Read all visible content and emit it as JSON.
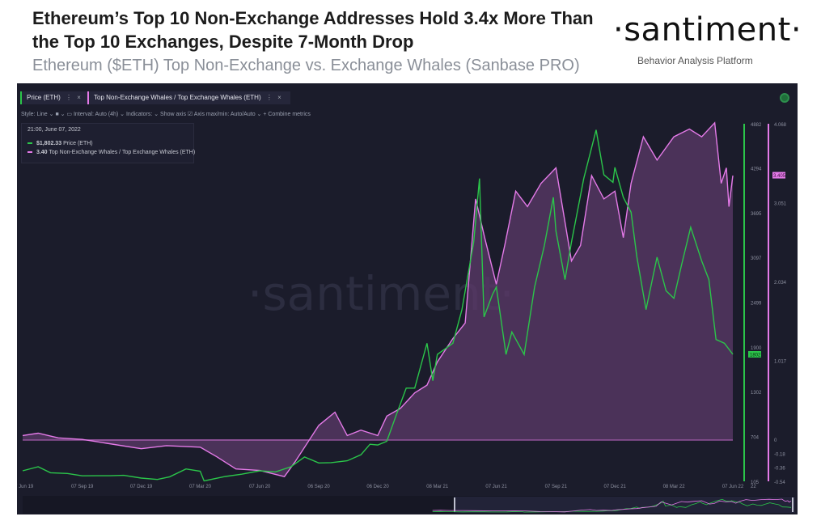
{
  "header": {
    "title": "Ethereum’s Top 10 Non-Exchange Addresses Hold 3.4x More Than the Top 10 Exchanges, Despite 7-Month Drop",
    "subtitle": "Ethereum ($ETH) Top Non-Exchange vs. Exchange Whales (Sanbase PRO)",
    "brand": "·santiment·",
    "brand_tagline": "Behavior Analysis Platform"
  },
  "chart_ui": {
    "chip_price": "Price (ETH)",
    "chip_ratio": "Top Non-Exchange Whales / Top Exchange Whales (ETH)",
    "close_glyph": "×",
    "dots_glyph": "⋮",
    "options_text": "Style: Line ⌄   ■ ⌄   ▭ Interval: Auto (4h) ⌄   Indicators: ⌄   Show axis ☑   Axis max/min: Auto/Auto ⌄   + Combine metrics",
    "watermark": "·santiment·",
    "tooltip": {
      "date": "21:00, June 07, 2022",
      "price_value": "$1,802.33",
      "price_label": "Price (ETH)",
      "ratio_value": "3.40",
      "ratio_label": "Top Non-Exchange Whales / Top Exchange Whales (ETH)"
    }
  },
  "chart_data": {
    "type": "line",
    "x_tick_labels": [
      "07 Jun 19",
      "07 Sep 19",
      "07 Dec 19",
      "07 Mar 20",
      "07 Jun 20",
      "06 Sep 20",
      "06 Dec 20",
      "08 Mar 21",
      "07 Jun 21",
      "07 Sep 21",
      "07 Dec 21",
      "08 Mar 22",
      "07 Jun 22",
      "22"
    ],
    "price_axis_ticks": [
      "4882",
      "4294",
      "3695",
      "3097",
      "2499",
      "1900",
      "1302",
      "704",
      "105"
    ],
    "ratio_axis_ticks": [
      "4.068",
      "3.051",
      "2.034",
      "1.017",
      "0",
      "-0.18",
      "-0.36",
      "-0.54"
    ],
    "price_current_label": "1802",
    "ratio_current_label": "3.405",
    "price_ylim": [
      105,
      4882
    ],
    "ratio_ylim": [
      -0.54,
      4.068
    ],
    "series": [
      {
        "name": "Price (ETH)",
        "color": "#2bc54a",
        "points": [
          [
            "2019-06-07",
            245
          ],
          [
            "2019-07-01",
            300
          ],
          [
            "2019-07-20",
            220
          ],
          [
            "2019-08-15",
            210
          ],
          [
            "2019-09-07",
            178
          ],
          [
            "2019-10-01",
            180
          ],
          [
            "2019-10-20",
            180
          ],
          [
            "2019-11-10",
            185
          ],
          [
            "2019-12-07",
            148
          ],
          [
            "2020-01-01",
            130
          ],
          [
            "2020-01-20",
            165
          ],
          [
            "2020-02-14",
            270
          ],
          [
            "2020-03-07",
            240
          ],
          [
            "2020-03-13",
            110
          ],
          [
            "2020-04-15",
            170
          ],
          [
            "2020-05-10",
            200
          ],
          [
            "2020-06-07",
            245
          ],
          [
            "2020-07-01",
            230
          ],
          [
            "2020-07-25",
            300
          ],
          [
            "2020-08-15",
            430
          ],
          [
            "2020-09-06",
            350
          ],
          [
            "2020-09-25",
            355
          ],
          [
            "2020-10-20",
            380
          ],
          [
            "2020-11-10",
            460
          ],
          [
            "2020-11-24",
            600
          ],
          [
            "2020-12-06",
            590
          ],
          [
            "2020-12-20",
            640
          ],
          [
            "2021-01-04",
            1000
          ],
          [
            "2021-01-19",
            1350
          ],
          [
            "2021-02-01",
            1350
          ],
          [
            "2021-02-20",
            1950
          ],
          [
            "2021-03-01",
            1450
          ],
          [
            "2021-03-08",
            1800
          ],
          [
            "2021-04-01",
            1950
          ],
          [
            "2021-04-15",
            2400
          ],
          [
            "2021-05-03",
            3300
          ],
          [
            "2021-05-12",
            4150
          ],
          [
            "2021-05-19",
            2300
          ],
          [
            "2021-06-01",
            2600
          ],
          [
            "2021-06-07",
            2700
          ],
          [
            "2021-06-22",
            1800
          ],
          [
            "2021-07-01",
            2100
          ],
          [
            "2021-07-20",
            1800
          ],
          [
            "2021-08-05",
            2700
          ],
          [
            "2021-08-20",
            3250
          ],
          [
            "2021-09-03",
            3900
          ],
          [
            "2021-09-07",
            3450
          ],
          [
            "2021-09-21",
            2800
          ],
          [
            "2021-10-01",
            3300
          ],
          [
            "2021-10-20",
            4150
          ],
          [
            "2021-11-08",
            4800
          ],
          [
            "2021-11-20",
            4200
          ],
          [
            "2021-12-04",
            4100
          ],
          [
            "2021-12-07",
            4300
          ],
          [
            "2021-12-20",
            3900
          ],
          [
            "2022-01-01",
            3700
          ],
          [
            "2022-01-10",
            3100
          ],
          [
            "2022-01-24",
            2400
          ],
          [
            "2022-02-10",
            3100
          ],
          [
            "2022-02-24",
            2650
          ],
          [
            "2022-03-08",
            2550
          ],
          [
            "2022-03-20",
            3000
          ],
          [
            "2022-04-03",
            3500
          ],
          [
            "2022-04-20",
            3050
          ],
          [
            "2022-05-01",
            2800
          ],
          [
            "2022-05-12",
            2000
          ],
          [
            "2022-05-25",
            1950
          ],
          [
            "2022-06-07",
            1802
          ]
        ]
      },
      {
        "name": "Top Non-Exchange Whales / Top Exchange Whales (ETH)",
        "color": "#e47ae8",
        "points": [
          [
            "2019-06-07",
            0.05
          ],
          [
            "2019-07-01",
            0.08
          ],
          [
            "2019-08-01",
            0.02
          ],
          [
            "2019-09-07",
            0.0
          ],
          [
            "2019-10-15",
            -0.05
          ],
          [
            "2019-12-07",
            -0.12
          ],
          [
            "2020-01-15",
            -0.08
          ],
          [
            "2020-03-07",
            -0.1
          ],
          [
            "2020-04-01",
            -0.22
          ],
          [
            "2020-05-01",
            -0.38
          ],
          [
            "2020-06-07",
            -0.4
          ],
          [
            "2020-07-15",
            -0.48
          ],
          [
            "2020-08-01",
            -0.28
          ],
          [
            "2020-09-06",
            0.18
          ],
          [
            "2020-10-01",
            0.35
          ],
          [
            "2020-10-20",
            0.05
          ],
          [
            "2020-11-10",
            0.12
          ],
          [
            "2020-12-06",
            0.05
          ],
          [
            "2020-12-20",
            0.3
          ],
          [
            "2021-01-10",
            0.4
          ],
          [
            "2021-02-01",
            0.6
          ],
          [
            "2021-02-20",
            0.7
          ],
          [
            "2021-03-08",
            1.0
          ],
          [
            "2021-04-01",
            1.3
          ],
          [
            "2021-04-20",
            1.5
          ],
          [
            "2021-05-06",
            3.1
          ],
          [
            "2021-05-20",
            2.6
          ],
          [
            "2021-06-07",
            2.0
          ],
          [
            "2021-06-20",
            2.5
          ],
          [
            "2021-07-07",
            3.2
          ],
          [
            "2021-07-25",
            3.0
          ],
          [
            "2021-08-15",
            3.3
          ],
          [
            "2021-09-07",
            3.5
          ],
          [
            "2021-10-01",
            2.3
          ],
          [
            "2021-10-15",
            2.5
          ],
          [
            "2021-11-01",
            3.4
          ],
          [
            "2021-11-20",
            3.1
          ],
          [
            "2021-12-07",
            3.2
          ],
          [
            "2021-12-20",
            2.6
          ],
          [
            "2022-01-01",
            3.3
          ],
          [
            "2022-01-20",
            3.9
          ],
          [
            "2022-02-10",
            3.6
          ],
          [
            "2022-03-08",
            3.9
          ],
          [
            "2022-04-01",
            4.0
          ],
          [
            "2022-04-20",
            3.9
          ],
          [
            "2022-05-10",
            4.08
          ],
          [
            "2022-05-20",
            3.3
          ],
          [
            "2022-05-28",
            3.5
          ],
          [
            "2022-06-01",
            3.0
          ],
          [
            "2022-06-07",
            3.4
          ]
        ]
      }
    ],
    "ratio_baseline": 0.0,
    "grid": false,
    "legend_position": "top-left"
  }
}
